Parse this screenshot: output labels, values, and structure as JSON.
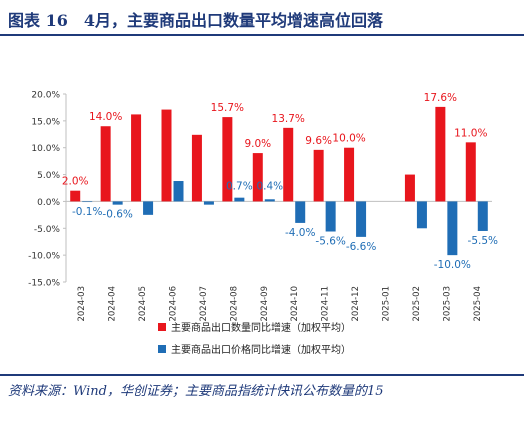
{
  "figure": {
    "title": "图表 16　4月，主要商品出口数量平均增速高位回落",
    "source": "资料来源：Wind，华创证券；主要商品指统计快讯公布数量的15"
  },
  "colors": {
    "quantity": "#e8161d",
    "price": "#1f6db5",
    "frame": "#1f3a7a"
  },
  "chart_data": {
    "type": "bar",
    "categories": [
      "2024-03",
      "2024-04",
      "2024-05",
      "2024-06",
      "2024-07",
      "2024-08",
      "2024-09",
      "2024-10",
      "2024-11",
      "2024-12",
      "2025-01",
      "2025-02",
      "2025-03",
      "2025-04"
    ],
    "series": [
      {
        "name": "主要商品出口数量同比增速（加权平均）",
        "values": [
          2.0,
          14.0,
          16.2,
          17.1,
          12.4,
          15.7,
          9.0,
          13.7,
          9.6,
          10.0,
          null,
          5.0,
          17.6,
          11.0
        ],
        "labels": [
          "2.0%",
          "14.0%",
          "",
          "",
          "",
          "15.7%",
          "9.0%",
          "13.7%",
          "9.6%",
          "10.0%",
          "",
          "",
          "17.6%",
          "11.0%"
        ]
      },
      {
        "name": "主要商品出口价格同比增速（加权平均）",
        "values": [
          -0.1,
          -0.6,
          -2.5,
          3.8,
          -0.6,
          0.7,
          0.4,
          -4.0,
          -5.6,
          -6.6,
          null,
          -5.0,
          -10.0,
          -5.5
        ],
        "labels": [
          "-0.1%",
          "-0.6%",
          "",
          "",
          "",
          "0.7%",
          "0.4%",
          "-4.0%",
          "-5.6%",
          "-6.6%",
          "",
          "",
          "-10.0%",
          "-5.5%"
        ]
      }
    ],
    "ylim": [
      -15,
      20
    ],
    "yticks": [
      "-15.0%",
      "-10.0%",
      "-5.0%",
      "0.0%",
      "5.0%",
      "10.0%",
      "15.0%",
      "20.0%"
    ],
    "legend_position": "bottom"
  }
}
